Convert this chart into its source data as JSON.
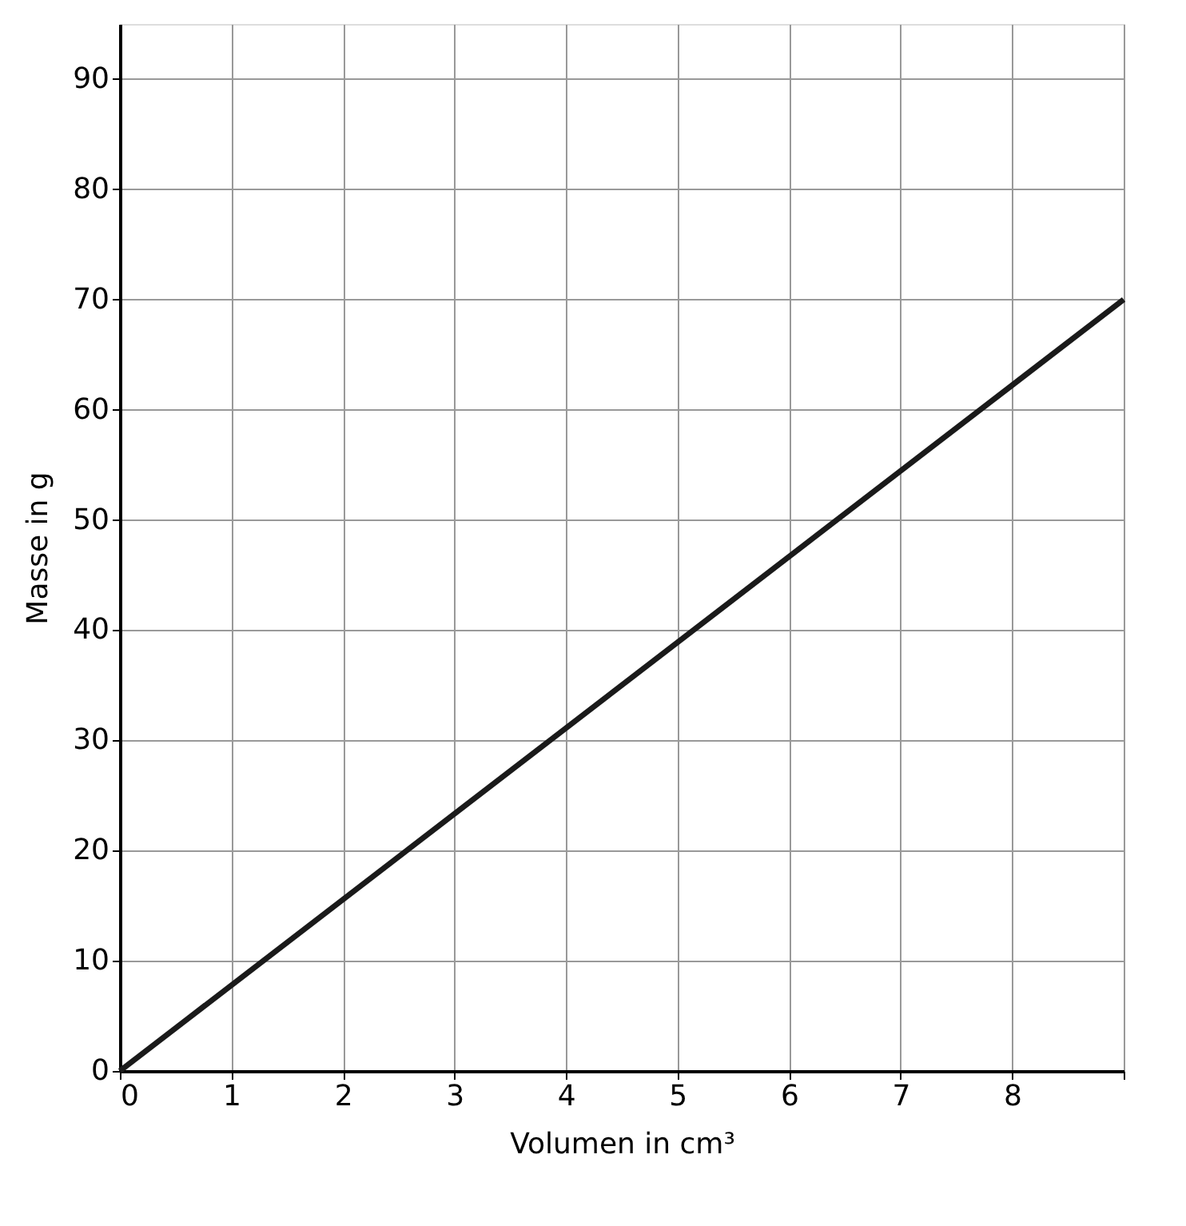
{
  "chart_data": {
    "type": "line",
    "xlabel": "Volumen in cm³",
    "ylabel": "Masse in g",
    "x": [
      0,
      9
    ],
    "series": [
      {
        "color": "#1a1a1a",
        "values": [
          0,
          70
        ]
      }
    ],
    "xlim": [
      0,
      9
    ],
    "xticks": [
      0,
      1,
      2,
      3,
      4,
      5,
      6,
      7,
      8,
      {
        "value": 9,
        "label": null
      }
    ],
    "ylim": [
      0,
      95
    ],
    "yticks": [
      0,
      10,
      20,
      30,
      40,
      50,
      60,
      70,
      80,
      90
    ],
    "grid": true,
    "marker": "none",
    "line_style": "solid"
  }
}
